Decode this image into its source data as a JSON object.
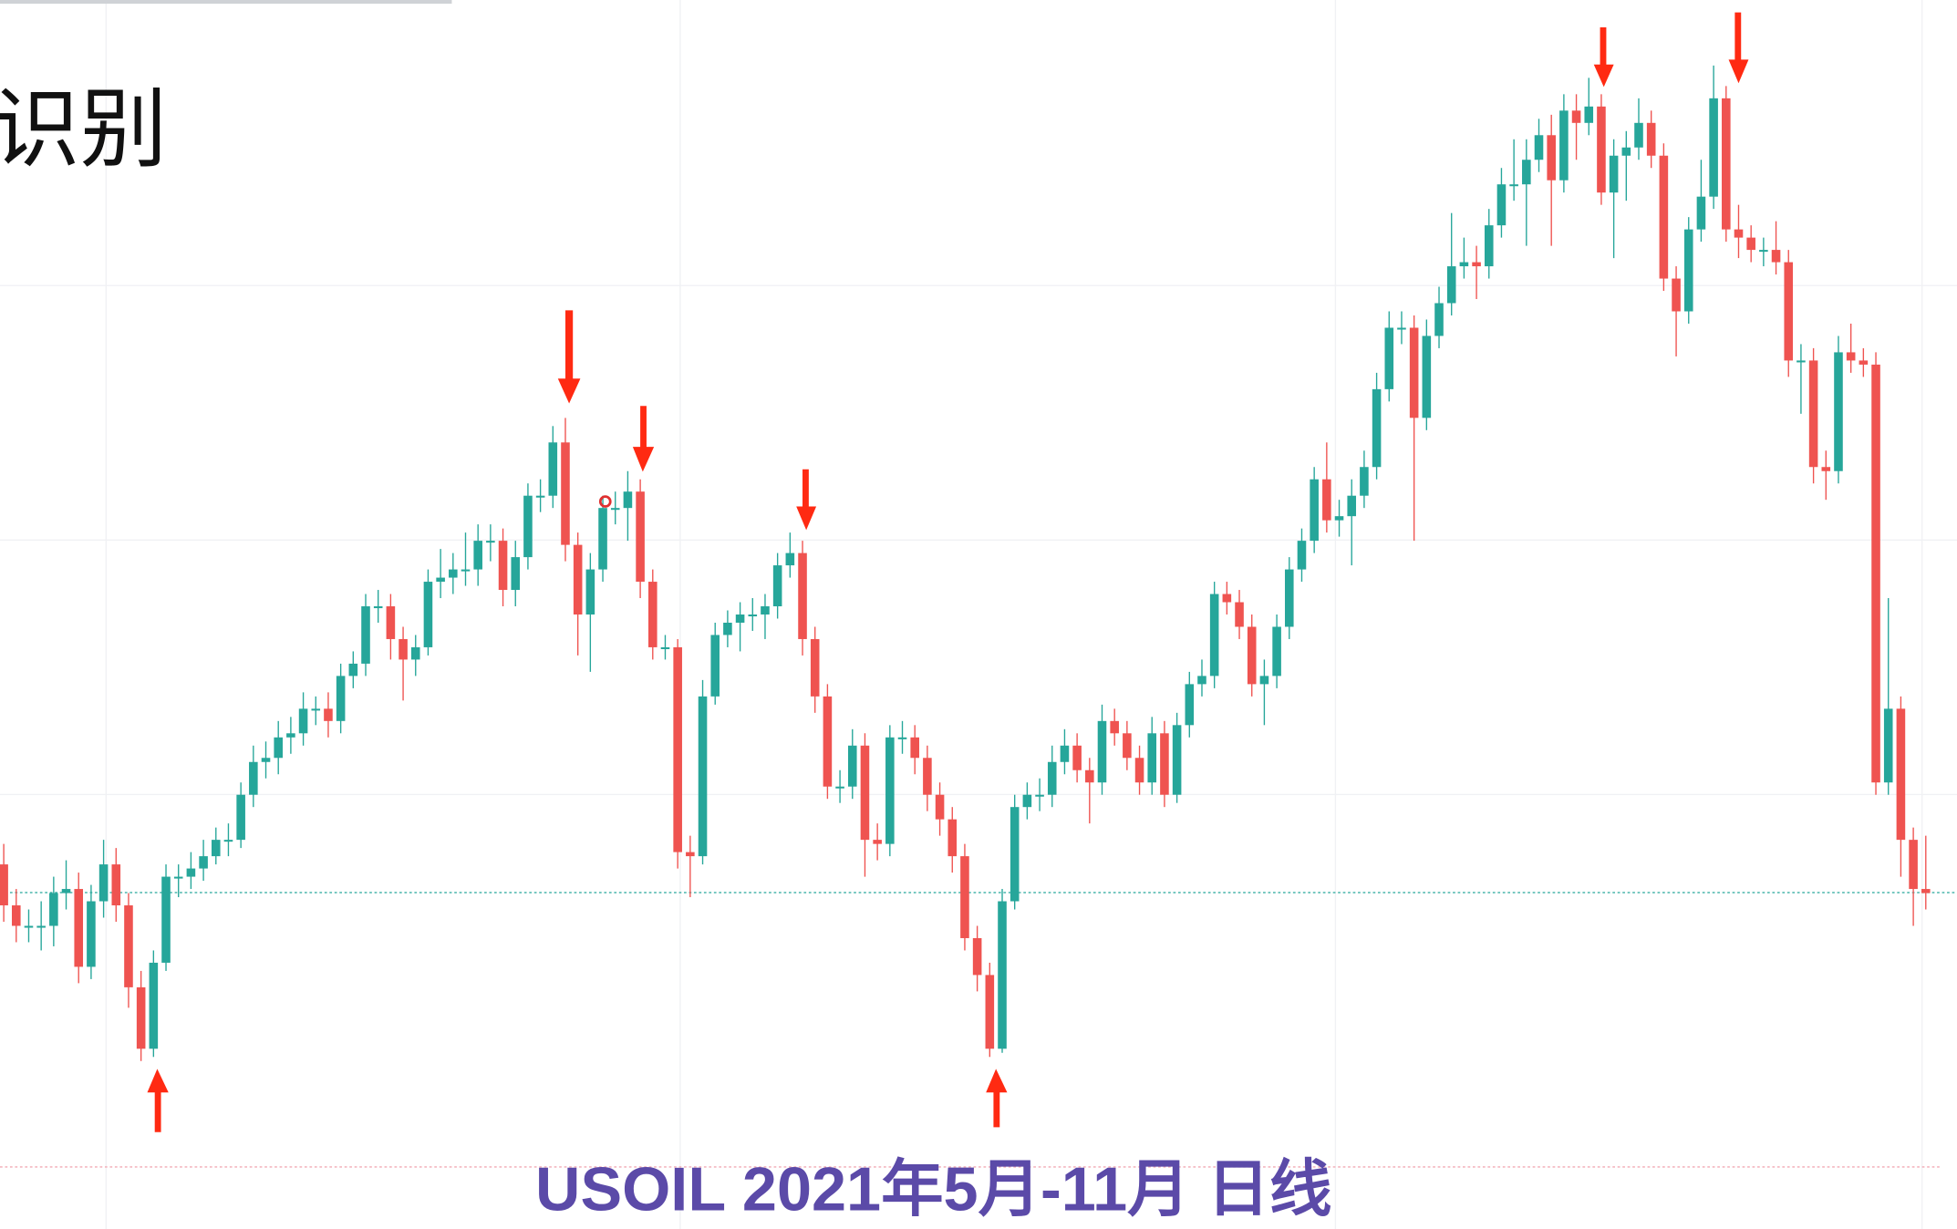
{
  "heading": "识别",
  "chart_data": {
    "type": "candlestick",
    "title": "USOIL 2021年5月-11月 日线",
    "open": [
      65.9,
      64.9,
      64.4,
      64.4,
      64.4,
      65.2,
      65.3,
      63.4,
      65.0,
      65.9,
      64.9,
      62.9,
      61.4,
      63.5,
      65.6,
      65.6,
      65.8,
      66.1,
      66.5,
      66.5,
      67.6,
      68.4,
      68.5,
      69.0,
      69.1,
      69.7,
      69.7,
      69.4,
      70.5,
      70.8,
      72.2,
      72.2,
      71.4,
      70.9,
      71.2,
      72.8,
      72.9,
      73.1,
      73.1,
      73.8,
      73.8,
      72.6,
      73.4,
      74.9,
      74.9,
      76.2,
      73.7,
      72.0,
      73.1,
      74.6,
      74.6,
      75.0,
      72.8,
      71.2,
      71.2,
      66.2,
      66.1,
      70.0,
      71.5,
      71.8,
      72.0,
      72.0,
      72.2,
      73.2,
      73.5,
      71.4,
      70.0,
      67.8,
      67.8,
      68.8,
      66.5,
      66.4,
      69.0,
      69.0,
      68.5,
      67.6,
      67.0,
      66.1,
      64.1,
      63.2,
      61.4,
      65.0,
      67.3,
      67.6,
      67.6,
      68.4,
      68.8,
      68.2,
      67.9,
      69.4,
      69.1,
      68.5,
      67.9,
      69.1,
      67.6,
      69.3,
      70.3,
      70.5,
      72.5,
      72.3,
      71.7,
      70.3,
      70.5,
      71.7,
      73.1,
      73.8,
      75.3,
      74.3,
      74.4,
      74.9,
      75.6,
      77.5,
      79.0,
      79.0,
      76.8,
      78.8,
      79.6,
      80.5,
      80.6,
      80.5,
      81.5,
      82.5,
      82.5,
      83.1,
      83.7,
      82.6,
      84.3,
      84.0,
      84.4,
      82.3,
      83.2,
      83.4,
      84.0,
      83.2,
      80.2,
      79.4,
      81.4,
      82.2,
      84.6,
      81.4,
      81.2,
      80.9,
      80.9,
      80.6,
      78.2,
      78.2,
      75.6,
      75.5,
      78.4,
      78.2,
      78.1,
      67.9,
      69.7,
      66.5,
      65.3
    ],
    "high": [
      66.4,
      65.3,
      64.8,
      65.0,
      65.6,
      66.0,
      65.7,
      65.4,
      66.5,
      66.3,
      65.2,
      63.3,
      63.8,
      65.9,
      65.9,
      66.2,
      66.5,
      66.8,
      66.9,
      67.9,
      68.8,
      68.9,
      69.4,
      69.5,
      70.1,
      70.0,
      70.1,
      70.8,
      71.1,
      72.5,
      72.6,
      72.5,
      71.7,
      71.5,
      73.1,
      73.6,
      73.5,
      74.0,
      74.2,
      74.2,
      74.1,
      73.8,
      75.2,
      75.3,
      76.6,
      76.8,
      74.0,
      73.5,
      74.9,
      75.0,
      75.5,
      75.3,
      73.1,
      71.5,
      71.4,
      66.6,
      70.4,
      71.8,
      72.1,
      72.3,
      72.4,
      72.5,
      73.5,
      74.0,
      73.8,
      71.7,
      70.3,
      68.2,
      69.2,
      69.1,
      66.9,
      69.3,
      69.4,
      69.3,
      68.8,
      67.9,
      67.3,
      66.4,
      64.4,
      63.5,
      65.3,
      67.6,
      67.9,
      68.0,
      68.8,
      69.2,
      69.1,
      68.5,
      69.8,
      69.7,
      69.4,
      68.8,
      69.5,
      69.4,
      69.6,
      70.6,
      70.9,
      72.8,
      72.8,
      72.6,
      72.0,
      70.9,
      72.0,
      73.4,
      74.1,
      75.6,
      76.2,
      74.8,
      75.3,
      76.0,
      77.9,
      79.4,
      79.4,
      79.3,
      79.2,
      80.0,
      81.8,
      81.2,
      81.0,
      81.9,
      82.9,
      83.6,
      83.6,
      84.1,
      84.2,
      84.7,
      84.7,
      85.1,
      84.7,
      83.6,
      83.8,
      84.6,
      84.3,
      83.5,
      80.5,
      81.7,
      83.1,
      85.4,
      84.9,
      82.0,
      81.5,
      81.2,
      81.6,
      80.9,
      78.6,
      78.5,
      76.0,
      78.8,
      79.1,
      78.5,
      78.4,
      72.4,
      70.0,
      66.8,
      66.6
    ],
    "low": [
      64.5,
      64.0,
      64.0,
      63.8,
      63.9,
      64.8,
      63.0,
      63.1,
      64.6,
      64.5,
      62.4,
      61.1,
      61.2,
      63.3,
      65.1,
      65.3,
      65.5,
      65.9,
      66.1,
      66.3,
      67.3,
      68.0,
      68.1,
      68.6,
      68.8,
      69.3,
      69.0,
      69.1,
      70.2,
      70.5,
      71.8,
      70.9,
      69.9,
      70.5,
      71.0,
      72.4,
      72.5,
      72.7,
      72.7,
      73.3,
      72.2,
      72.2,
      73.1,
      74.5,
      74.6,
      73.3,
      71.0,
      70.6,
      72.8,
      74.2,
      73.8,
      72.4,
      70.9,
      70.9,
      65.8,
      65.1,
      65.9,
      69.8,
      71.2,
      71.1,
      71.6,
      71.4,
      71.9,
      72.9,
      71.0,
      69.6,
      67.5,
      67.4,
      67.5,
      65.6,
      66.0,
      66.1,
      68.6,
      68.1,
      67.2,
      66.6,
      65.7,
      63.8,
      62.8,
      61.2,
      61.3,
      64.8,
      67.0,
      67.2,
      67.3,
      68.1,
      67.9,
      66.9,
      67.6,
      68.8,
      68.2,
      67.6,
      67.6,
      67.3,
      67.4,
      69.0,
      70.0,
      70.2,
      72.0,
      71.4,
      70.0,
      69.3,
      70.2,
      71.4,
      72.8,
      73.5,
      74.0,
      73.9,
      73.2,
      74.6,
      75.3,
      77.2,
      78.6,
      73.8,
      76.5,
      78.5,
      79.3,
      80.2,
      79.7,
      80.2,
      81.2,
      82.1,
      81.0,
      82.8,
      81.0,
      82.3,
      83.1,
      83.7,
      82.0,
      80.7,
      82.1,
      83.1,
      82.9,
      79.9,
      78.3,
      79.1,
      81.1,
      81.9,
      81.1,
      80.7,
      80.6,
      80.5,
      80.3,
      77.8,
      76.9,
      75.2,
      74.8,
      75.2,
      77.9,
      77.8,
      67.6,
      67.6,
      65.6,
      64.4,
      64.8
    ],
    "close": [
      64.9,
      64.4,
      64.4,
      64.4,
      65.2,
      65.3,
      63.4,
      65.0,
      65.9,
      64.9,
      62.9,
      61.4,
      63.5,
      65.6,
      65.6,
      65.8,
      66.1,
      66.5,
      66.5,
      67.6,
      68.4,
      68.5,
      69.0,
      69.1,
      69.7,
      69.7,
      69.4,
      70.5,
      70.8,
      72.2,
      72.2,
      71.4,
      70.9,
      71.2,
      72.8,
      72.9,
      73.1,
      73.1,
      73.8,
      73.8,
      72.6,
      73.4,
      74.9,
      74.9,
      76.2,
      73.7,
      72.0,
      73.1,
      74.6,
      74.6,
      75.0,
      72.8,
      71.2,
      71.2,
      66.2,
      66.1,
      70.0,
      71.5,
      71.8,
      72.0,
      72.0,
      72.2,
      73.2,
      73.5,
      71.4,
      70.0,
      67.8,
      67.8,
      68.8,
      66.5,
      66.4,
      69.0,
      69.0,
      68.5,
      67.6,
      67.0,
      66.1,
      64.1,
      63.2,
      61.4,
      65.0,
      67.3,
      67.6,
      67.6,
      68.4,
      68.8,
      68.2,
      67.9,
      69.4,
      69.1,
      68.5,
      67.9,
      69.1,
      67.6,
      69.3,
      70.3,
      70.5,
      72.5,
      72.3,
      71.7,
      70.3,
      70.5,
      71.7,
      73.1,
      73.8,
      75.3,
      74.3,
      74.4,
      74.9,
      75.6,
      77.5,
      79.0,
      79.0,
      76.8,
      78.8,
      79.6,
      80.5,
      80.6,
      80.5,
      81.5,
      82.5,
      82.5,
      83.1,
      83.7,
      82.6,
      84.3,
      84.0,
      84.4,
      82.3,
      83.2,
      83.4,
      84.0,
      83.2,
      80.2,
      79.4,
      81.4,
      82.2,
      84.6,
      81.4,
      81.2,
      80.9,
      80.9,
      80.6,
      78.2,
      78.2,
      75.6,
      75.5,
      78.4,
      78.2,
      78.1,
      67.9,
      69.7,
      66.5,
      65.3,
      65.2
    ],
    "ylim": [
      57,
      87
    ],
    "up_color": "#26a69a",
    "down_color": "#ef5350"
  }
}
